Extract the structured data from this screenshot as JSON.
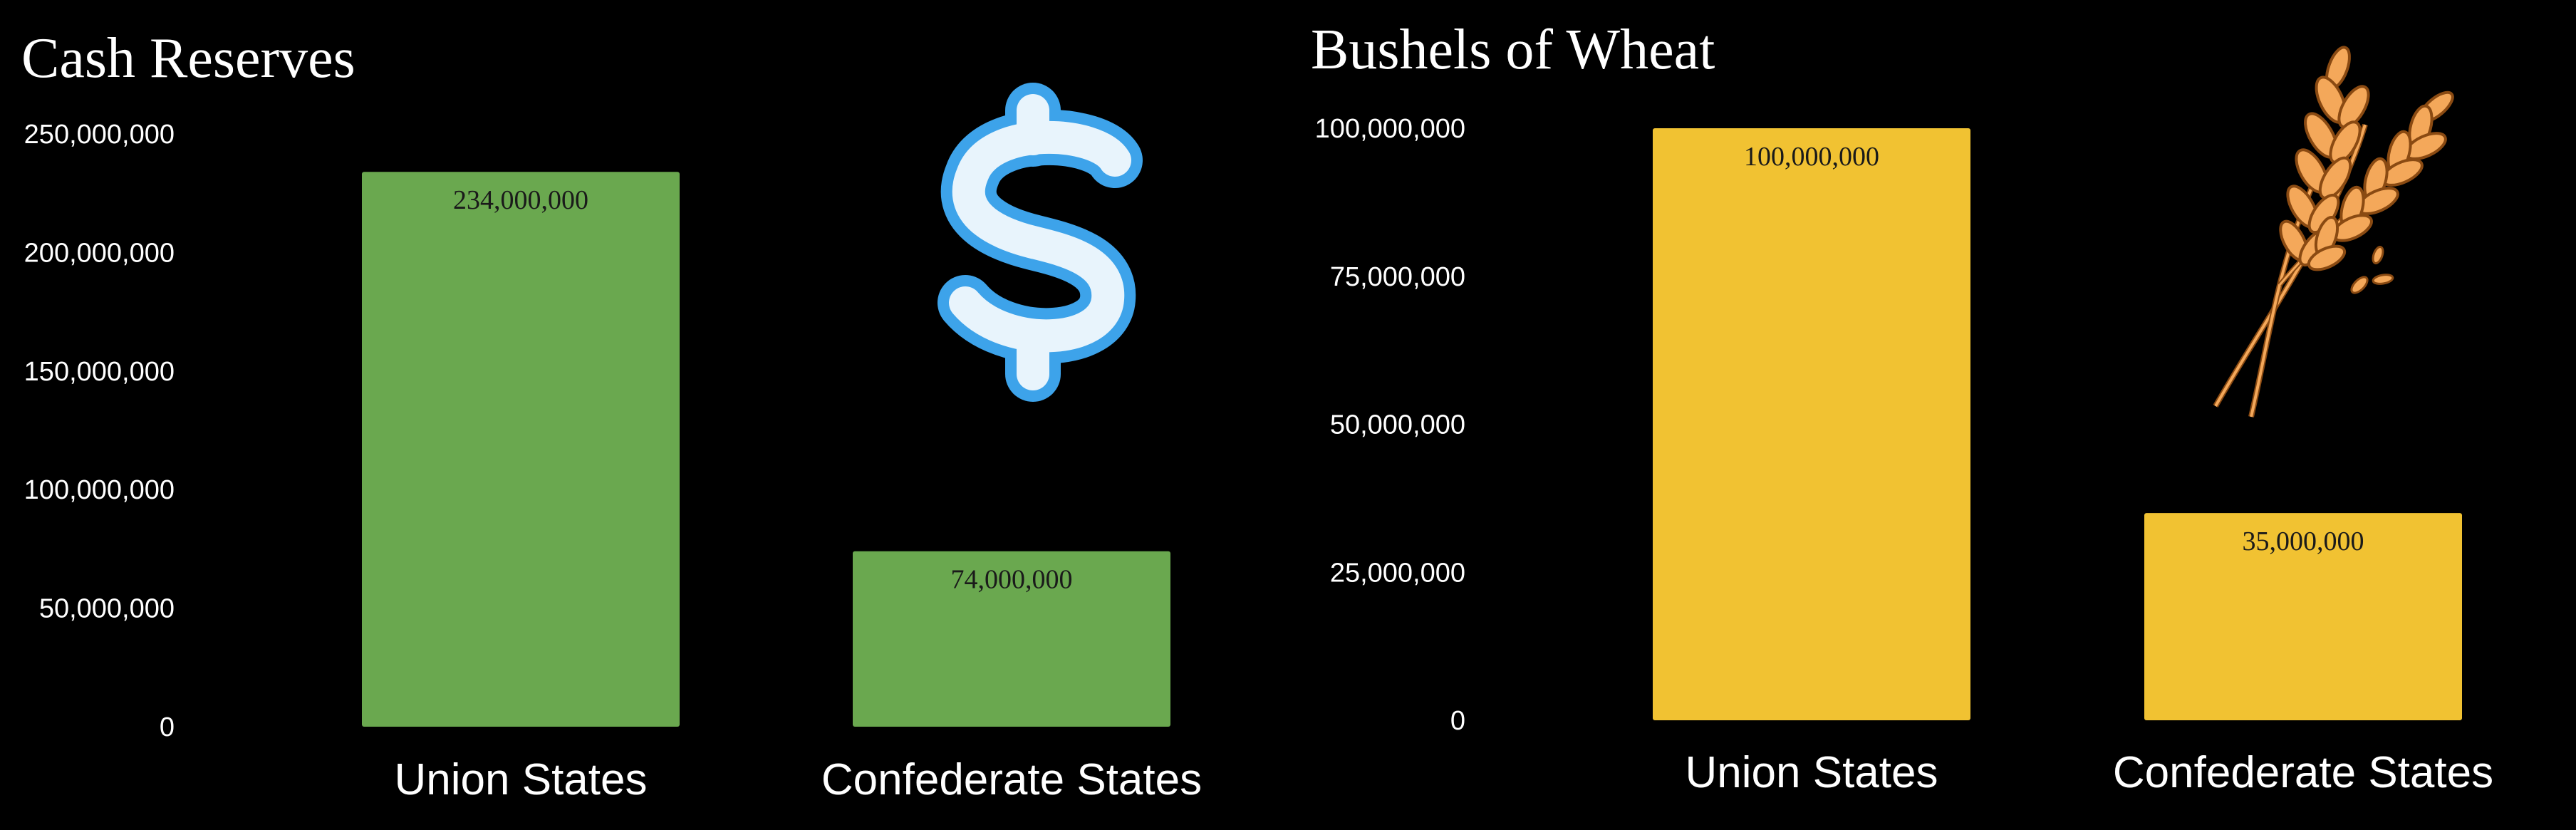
{
  "colors": {
    "background": "#000000",
    "text": "#ffffff",
    "label_text": "#1a1a1a",
    "dollar_fill": "#e8f4fc",
    "dollar_stroke": "#3da3ea",
    "wheat_fill": "#f4a85a",
    "wheat_stroke": "#8a4a12"
  },
  "icons": [
    "dollar-sign-icon",
    "wheat-icon"
  ],
  "chart_data": [
    {
      "type": "bar",
      "title": "Cash Reserves",
      "categories": [
        "Union States",
        "Confederate States"
      ],
      "values": [
        234000000,
        74000000
      ],
      "value_labels": [
        "234,000,000",
        "74,000,000"
      ],
      "yticks": [
        0,
        50000000,
        100000000,
        150000000,
        200000000,
        250000000
      ],
      "ytick_labels": [
        "0",
        "50,000,000",
        "100,000,000",
        "150,000,000",
        "200,000,000",
        "250,000,000"
      ],
      "ylim": [
        0,
        250000000
      ],
      "bar_color": "#6aa84f",
      "grid": false,
      "legend": "none"
    },
    {
      "type": "bar",
      "title": "Bushels of Wheat",
      "categories": [
        "Union States",
        "Confederate States"
      ],
      "values": [
        100000000,
        35000000
      ],
      "value_labels": [
        "100,000,000",
        "35,000,000"
      ],
      "yticks": [
        0,
        25000000,
        50000000,
        75000000,
        100000000
      ],
      "ytick_labels": [
        "0",
        "25,000,000",
        "50,000,000",
        "75,000,000",
        "100,000,000"
      ],
      "ylim": [
        0,
        100000000
      ],
      "bar_color": "#f1c232",
      "grid": false,
      "legend": "none"
    }
  ]
}
